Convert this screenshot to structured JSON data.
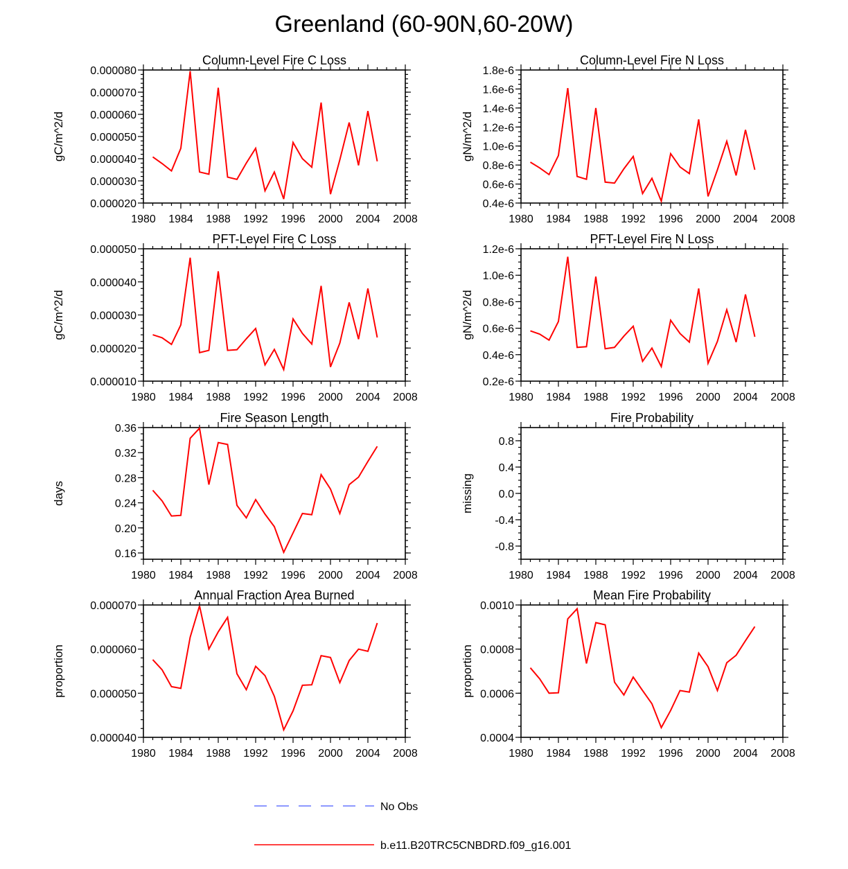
{
  "figure_title": "Greenland (60-90N,60-20W)",
  "colors": {
    "model_line": "#ff0000",
    "obs_line": "#6677ff",
    "axis": "#000000"
  },
  "legend": [
    {
      "label": "No Obs",
      "style": "dashed",
      "color": "#6677ff"
    },
    {
      "label": "b.e11.B20TRC5CNBDRD.f09_g16.001",
      "style": "solid",
      "color": "#ff0000"
    }
  ],
  "chart_data": [
    {
      "type": "line",
      "title": "Column-Level Fire C Loss",
      "xlabel": "",
      "ylabel": "gC/m^2/d",
      "xlim": [
        1980,
        2008
      ],
      "ylim": [
        2e-05,
        8e-05
      ],
      "xticks": [
        1980,
        1984,
        1988,
        1992,
        1996,
        2000,
        2004,
        2008
      ],
      "xtick_labels": [
        "1980",
        "1984",
        "1988",
        "1992",
        "1996",
        "2000",
        "2004",
        "2008"
      ],
      "yticks": [
        2e-05,
        3e-05,
        4e-05,
        5e-05,
        6e-05,
        7e-05,
        8e-05
      ],
      "ytick_labels": [
        "0.000020",
        "0.000030",
        "0.000040",
        "0.000050",
        "0.000060",
        "0.000070",
        "0.000080"
      ],
      "yminor_step": 2e-06,
      "series": [
        {
          "name": "b.e11.B20TRC5CNBDRD.f09_g16.001",
          "x": [
            1981,
            1982,
            1983,
            1984,
            1985,
            1986,
            1987,
            1988,
            1989,
            1990,
            1991,
            1992,
            1993,
            1994,
            1995,
            1996,
            1997,
            1998,
            1999,
            2000,
            2001,
            2002,
            2003,
            2004,
            2005
          ],
          "values": [
            4.08e-05,
            3.78e-05,
            3.45e-05,
            4.47e-05,
            7.95e-05,
            3.4e-05,
            3.3e-05,
            7.2e-05,
            3.17e-05,
            3.07e-05,
            3.8e-05,
            4.47e-05,
            2.55e-05,
            3.4e-05,
            2.18e-05,
            4.73e-05,
            4e-05,
            3.62e-05,
            6.53e-05,
            2.4e-05,
            3.95e-05,
            5.63e-05,
            3.7e-05,
            6.15e-05,
            3.88e-05
          ]
        }
      ]
    },
    {
      "type": "line",
      "title": "Column-Level Fire N Loss",
      "xlabel": "",
      "ylabel": "gN/m^2/d",
      "xlim": [
        1980,
        2008
      ],
      "ylim": [
        4e-07,
        1.8e-06
      ],
      "xticks": [
        1980,
        1984,
        1988,
        1992,
        1996,
        2000,
        2004,
        2008
      ],
      "xtick_labels": [
        "1980",
        "1984",
        "1988",
        "1992",
        "1996",
        "2000",
        "2004",
        "2008"
      ],
      "yticks": [
        4e-07,
        6e-07,
        8e-07,
        1e-06,
        1.2e-06,
        1.4e-06,
        1.6e-06,
        1.8e-06
      ],
      "ytick_labels": [
        "0.4e-6",
        "0.6e-6",
        "0.8e-6",
        "1.0e-6",
        "1.2e-6",
        "1.4e-6",
        "1.6e-6",
        "1.8e-6"
      ],
      "yminor_step": 5e-08,
      "series": [
        {
          "name": "b.e11.B20TRC5CNBDRD.f09_g16.001",
          "x": [
            1981,
            1982,
            1983,
            1984,
            1985,
            1986,
            1987,
            1988,
            1989,
            1990,
            1991,
            1992,
            1993,
            1994,
            1995,
            1996,
            1997,
            1998,
            1999,
            2000,
            2001,
            2002,
            2003,
            2004,
            2005
          ],
          "values": [
            8.3e-07,
            7.7e-07,
            7e-07,
            9e-07,
            1.61e-06,
            6.8e-07,
            6.5e-07,
            1.4e-06,
            6.2e-07,
            6.1e-07,
            7.6e-07,
            8.9e-07,
            5e-07,
            6.6e-07,
            4.2e-07,
            9.2e-07,
            7.8e-07,
            7.1e-07,
            1.28e-06,
            4.7e-07,
            7.5e-07,
            1.05e-06,
            6.9e-07,
            1.17e-06,
            7.5e-07
          ]
        }
      ]
    },
    {
      "type": "line",
      "title": "PFT-Level Fire C Loss",
      "xlabel": "",
      "ylabel": "gC/m^2/d",
      "xlim": [
        1980,
        2008
      ],
      "ylim": [
        1e-05,
        5e-05
      ],
      "xticks": [
        1980,
        1984,
        1988,
        1992,
        1996,
        2000,
        2004,
        2008
      ],
      "xtick_labels": [
        "1980",
        "1984",
        "1988",
        "1992",
        "1996",
        "2000",
        "2004",
        "2008"
      ],
      "yticks": [
        1e-05,
        2e-05,
        3e-05,
        4e-05,
        5e-05
      ],
      "ytick_labels": [
        "0.000010",
        "0.000020",
        "0.000030",
        "0.000040",
        "0.000050"
      ],
      "yminor_step": 2e-06,
      "series": [
        {
          "name": "b.e11.B20TRC5CNBDRD.f09_g16.001",
          "x": [
            1981,
            1982,
            1983,
            1984,
            1985,
            1986,
            1987,
            1988,
            1989,
            1990,
            1991,
            1992,
            1993,
            1994,
            1995,
            1996,
            1997,
            1998,
            1999,
            2000,
            2001,
            2002,
            2003,
            2004,
            2005
          ],
          "values": [
            2.4e-05,
            2.31e-05,
            2.11e-05,
            2.7e-05,
            4.73e-05,
            1.86e-05,
            1.93e-05,
            4.32e-05,
            1.93e-05,
            1.95e-05,
            2.28e-05,
            2.59e-05,
            1.49e-05,
            1.96e-05,
            1.35e-05,
            2.88e-05,
            2.44e-05,
            2.12e-05,
            3.88e-05,
            1.43e-05,
            2.15e-05,
            3.38e-05,
            2.27e-05,
            3.8e-05,
            2.32e-05
          ]
        }
      ]
    },
    {
      "type": "line",
      "title": "PFT-Level Fire N Loss",
      "xlabel": "",
      "ylabel": "gN/m^2/d",
      "xlim": [
        1980,
        2008
      ],
      "ylim": [
        2e-07,
        1.2e-06
      ],
      "xticks": [
        1980,
        1984,
        1988,
        1992,
        1996,
        2000,
        2004,
        2008
      ],
      "xtick_labels": [
        "1980",
        "1984",
        "1988",
        "1992",
        "1996",
        "2000",
        "2004",
        "2008"
      ],
      "yticks": [
        2e-07,
        4e-07,
        6e-07,
        8e-07,
        1e-06,
        1.2e-06
      ],
      "ytick_labels": [
        "0.2e-6",
        "0.4e-6",
        "0.6e-6",
        "0.8e-6",
        "1.0e-6",
        "1.2e-6"
      ],
      "yminor_step": 5e-08,
      "series": [
        {
          "name": "b.e11.B20TRC5CNBDRD.f09_g16.001",
          "x": [
            1981,
            1982,
            1983,
            1984,
            1985,
            1986,
            1987,
            1988,
            1989,
            1990,
            1991,
            1992,
            1993,
            1994,
            1995,
            1996,
            1997,
            1998,
            1999,
            2000,
            2001,
            2002,
            2003,
            2004,
            2005
          ],
          "values": [
            5.8e-07,
            5.55e-07,
            5.1e-07,
            6.5e-07,
            1.14e-06,
            4.55e-07,
            4.6e-07,
            9.9e-07,
            4.45e-07,
            4.55e-07,
            5.4e-07,
            6.15e-07,
            3.5e-07,
            4.5e-07,
            3.1e-07,
            6.6e-07,
            5.6e-07,
            4.95e-07,
            9e-07,
            3.35e-07,
            5e-07,
            7.4e-07,
            4.95e-07,
            8.55e-07,
            5.35e-07
          ]
        }
      ]
    },
    {
      "type": "line",
      "title": "Fire Season Length",
      "xlabel": "",
      "ylabel": "days",
      "xlim": [
        1980,
        2008
      ],
      "ylim": [
        0.15,
        0.36
      ],
      "xticks": [
        1980,
        1984,
        1988,
        1992,
        1996,
        2000,
        2004,
        2008
      ],
      "xtick_labels": [
        "1980",
        "1984",
        "1988",
        "1992",
        "1996",
        "2000",
        "2004",
        "2008"
      ],
      "yticks": [
        0.16,
        0.2,
        0.24,
        0.28,
        0.32,
        0.36
      ],
      "ytick_labels": [
        "0.16",
        "0.20",
        "0.24",
        "0.28",
        "0.32",
        "0.36"
      ],
      "yminor_step": 0.01,
      "series": [
        {
          "name": "b.e11.B20TRC5CNBDRD.f09_g16.001",
          "x": [
            1981,
            1982,
            1983,
            1984,
            1985,
            1986,
            1987,
            1988,
            1989,
            1990,
            1991,
            1992,
            1993,
            1994,
            1995,
            1996,
            1997,
            1998,
            1999,
            2000,
            2001,
            2002,
            2003,
            2004,
            2005
          ],
          "values": [
            0.26,
            0.243,
            0.219,
            0.22,
            0.343,
            0.359,
            0.269,
            0.336,
            0.333,
            0.236,
            0.216,
            0.245,
            0.222,
            0.202,
            0.161,
            0.192,
            0.223,
            0.221,
            0.285,
            0.262,
            0.223,
            0.269,
            0.281,
            0.306,
            0.33
          ]
        }
      ]
    },
    {
      "type": "line",
      "title": "Fire Probability",
      "xlabel": "",
      "ylabel": "missing",
      "xlim": [
        1980,
        2008
      ],
      "ylim": [
        -1.0,
        1.0
      ],
      "xticks": [
        1980,
        1984,
        1988,
        1992,
        1996,
        2000,
        2004,
        2008
      ],
      "xtick_labels": [
        "1980",
        "1984",
        "1988",
        "1992",
        "1996",
        "2000",
        "2004",
        "2008"
      ],
      "yticks": [
        -0.8,
        -0.4,
        0.0,
        0.4,
        0.8
      ],
      "ytick_labels": [
        "-0.8",
        "-0.4",
        "0.0",
        "0.4",
        "0.8"
      ],
      "yminor_step": 0.1,
      "series": []
    },
    {
      "type": "line",
      "title": "Annual Fraction Area Burned",
      "xlabel": "",
      "ylabel": "proportion",
      "xlim": [
        1980,
        2008
      ],
      "ylim": [
        4e-05,
        7e-05
      ],
      "xticks": [
        1980,
        1984,
        1988,
        1992,
        1996,
        2000,
        2004,
        2008
      ],
      "xtick_labels": [
        "1980",
        "1984",
        "1988",
        "1992",
        "1996",
        "2000",
        "2004",
        "2008"
      ],
      "yticks": [
        4e-05,
        5e-05,
        6e-05,
        7e-05
      ],
      "ytick_labels": [
        "0.000040",
        "0.000050",
        "0.000060",
        "0.000070"
      ],
      "yminor_step": 2e-06,
      "series": [
        {
          "name": "b.e11.B20TRC5CNBDRD.f09_g16.001",
          "x": [
            1981,
            1982,
            1983,
            1984,
            1985,
            1986,
            1987,
            1988,
            1989,
            1990,
            1991,
            1992,
            1993,
            1994,
            1995,
            1996,
            1997,
            1998,
            1999,
            2000,
            2001,
            2002,
            2003,
            2004,
            2005
          ],
          "values": [
            5.76e-05,
            5.53e-05,
            5.15e-05,
            5.11e-05,
            6.27e-05,
            6.98e-05,
            6e-05,
            6.39e-05,
            6.72e-05,
            5.44e-05,
            5.08e-05,
            5.61e-05,
            5.4e-05,
            4.93e-05,
            4.17e-05,
            4.6e-05,
            5.18e-05,
            5.19e-05,
            5.85e-05,
            5.81e-05,
            5.24e-05,
            5.74e-05,
            6e-05,
            5.95e-05,
            6.59e-05
          ]
        }
      ]
    },
    {
      "type": "line",
      "title": "Mean Fire Probability",
      "xlabel": "",
      "ylabel": "proportion",
      "xlim": [
        1980,
        2008
      ],
      "ylim": [
        0.0004,
        0.001
      ],
      "xticks": [
        1980,
        1984,
        1988,
        1992,
        1996,
        2000,
        2004,
        2008
      ],
      "xtick_labels": [
        "1980",
        "1984",
        "1988",
        "1992",
        "1996",
        "2000",
        "2004",
        "2008"
      ],
      "yticks": [
        0.0004,
        0.0006,
        0.0008,
        0.001
      ],
      "ytick_labels": [
        "0.0004",
        "0.0006",
        "0.0008",
        "0.0010"
      ],
      "yminor_step": 5e-05,
      "series": [
        {
          "name": "b.e11.B20TRC5CNBDRD.f09_g16.001",
          "x": [
            1981,
            1982,
            1983,
            1984,
            1985,
            1986,
            1987,
            1988,
            1989,
            1990,
            1991,
            1992,
            1993,
            1994,
            1995,
            1996,
            1997,
            1998,
            1999,
            2000,
            2001,
            2002,
            2003,
            2004,
            2005
          ],
          "values": [
            0.000715,
            0.000665,
            0.0006,
            0.000602,
            0.000937,
            0.000983,
            0.000735,
            0.00092,
            0.00091,
            0.00065,
            0.000592,
            0.000673,
            0.000612,
            0.000552,
            0.000444,
            0.000522,
            0.000612,
            0.000605,
            0.000782,
            0.00072,
            0.000612,
            0.000738,
            0.000772,
            0.000838,
            0.000902
          ]
        }
      ]
    }
  ]
}
